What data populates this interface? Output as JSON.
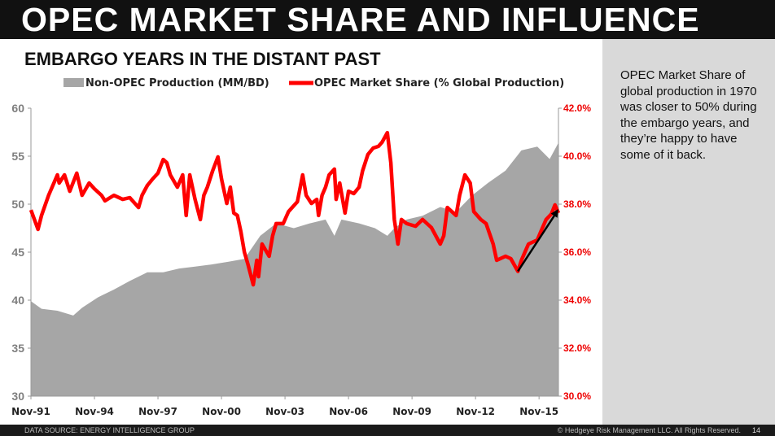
{
  "title": "OPEC MARKET SHARE AND INFLUENCE",
  "subtitle": "EMBARGO YEARS IN THE DISTANT PAST",
  "sidebar_text": "OPEC Market Share of global production in 1970 was closer to 50% during the embargo years, and they’re happy to have some of it back.",
  "footer": {
    "source": "DATA SOURCE: ENERGY INTELLIGENCE GROUP",
    "copyright": "© Hedgeye Risk Management LLC. All Rights Reserved.",
    "page": "14"
  },
  "chart_data": {
    "type": "area+line",
    "legend_position": "top",
    "grid": false,
    "x_ticks": [
      "Nov-91",
      "Nov-94",
      "Nov-97",
      "Nov-00",
      "Nov-03",
      "Nov-06",
      "Nov-09",
      "Nov-12",
      "Nov-15"
    ],
    "x_range": [
      "1991-11",
      "2016-10"
    ],
    "y_left": {
      "range": [
        30,
        60
      ],
      "ticks": [
        "30",
        "35",
        "40",
        "45",
        "50",
        "55",
        "60"
      ]
    },
    "y_right": {
      "range": [
        30,
        42
      ],
      "ticks": [
        "30.0%",
        "32.0%",
        "34.0%",
        "36.0%",
        "38.0%",
        "40.0%",
        "42.0%"
      ]
    },
    "colors": {
      "area": "#a6a6a6",
      "line": "#ff0000",
      "right_axis": "#ff0000",
      "arrow": "#000000"
    },
    "series": [
      {
        "name": "Non-OPEC Production (MM/BD)",
        "type": "area",
        "axis": "left",
        "points": [
          [
            "1991-11",
            39.9
          ],
          [
            "1992-05",
            39.1
          ],
          [
            "1993-02",
            38.9
          ],
          [
            "1993-11",
            38.4
          ],
          [
            "1994-04",
            39.2
          ],
          [
            "1995-01",
            40.3
          ],
          [
            "1995-10",
            41.1
          ],
          [
            "1996-07",
            42.0
          ],
          [
            "1997-05",
            42.9
          ],
          [
            "1998-02",
            42.9
          ],
          [
            "1998-11",
            43.3
          ],
          [
            "1999-08",
            43.5
          ],
          [
            "2000-05",
            43.7
          ],
          [
            "2001-03",
            44.0
          ],
          [
            "2001-12",
            44.3
          ],
          [
            "2002-09",
            46.7
          ],
          [
            "2003-06",
            48.0
          ],
          [
            "2004-04",
            47.5
          ],
          [
            "2005-01",
            48.0
          ],
          [
            "2005-10",
            48.4
          ],
          [
            "2006-03",
            46.7
          ],
          [
            "2006-07",
            48.4
          ],
          [
            "2007-05",
            48.0
          ],
          [
            "2008-02",
            47.5
          ],
          [
            "2008-09",
            46.7
          ],
          [
            "2009-01",
            47.5
          ],
          [
            "2009-08",
            48.4
          ],
          [
            "2010-05",
            48.8
          ],
          [
            "2011-03",
            49.7
          ],
          [
            "2011-12",
            49.2
          ],
          [
            "2012-09",
            50.9
          ],
          [
            "2013-06",
            52.2
          ],
          [
            "2014-04",
            53.5
          ],
          [
            "2015-01",
            55.6
          ],
          [
            "2015-10",
            56.0
          ],
          [
            "2016-05",
            54.7
          ],
          [
            "2016-10",
            56.4
          ]
        ]
      },
      {
        "name": "OPEC Market Share (% Global Production)",
        "type": "line",
        "axis": "right",
        "points": [
          [
            "1991-11",
            37.76
          ],
          [
            "1992-03",
            36.95
          ],
          [
            "1992-05",
            37.53
          ],
          [
            "1992-09",
            38.37
          ],
          [
            "1993-02",
            39.22
          ],
          [
            "1993-03",
            38.88
          ],
          [
            "1993-06",
            39.22
          ],
          [
            "1993-09",
            38.54
          ],
          [
            "1994-01",
            39.29
          ],
          [
            "1994-04",
            38.37
          ],
          [
            "1994-08",
            38.88
          ],
          [
            "1994-11",
            38.64
          ],
          [
            "1995-03",
            38.37
          ],
          [
            "1995-05",
            38.14
          ],
          [
            "1995-10",
            38.37
          ],
          [
            "1996-03",
            38.2
          ],
          [
            "1996-07",
            38.27
          ],
          [
            "1996-12",
            37.86
          ],
          [
            "1997-02",
            38.37
          ],
          [
            "1997-05",
            38.78
          ],
          [
            "1997-08",
            39.05
          ],
          [
            "1997-11",
            39.29
          ],
          [
            "1998-02",
            39.86
          ],
          [
            "1998-04",
            39.73
          ],
          [
            "1998-06",
            39.22
          ],
          [
            "1998-10",
            38.71
          ],
          [
            "1999-01",
            39.22
          ],
          [
            "1999-03",
            37.53
          ],
          [
            "1999-05",
            39.22
          ],
          [
            "1999-08",
            38.2
          ],
          [
            "1999-11",
            37.36
          ],
          [
            "2000-01",
            38.37
          ],
          [
            "2000-03",
            38.71
          ],
          [
            "2000-06",
            39.39
          ],
          [
            "2000-09",
            39.97
          ],
          [
            "2000-11",
            39.05
          ],
          [
            "2001-02",
            38.03
          ],
          [
            "2001-04",
            38.71
          ],
          [
            "2001-06",
            37.63
          ],
          [
            "2001-08",
            37.53
          ],
          [
            "2001-10",
            36.85
          ],
          [
            "2001-12",
            36.0
          ],
          [
            "2002-02",
            35.49
          ],
          [
            "2002-05",
            34.64
          ],
          [
            "2002-07",
            35.66
          ],
          [
            "2002-08",
            34.98
          ],
          [
            "2002-10",
            36.34
          ],
          [
            "2003-02",
            35.83
          ],
          [
            "2003-04",
            36.68
          ],
          [
            "2003-06",
            37.19
          ],
          [
            "2003-10",
            37.19
          ],
          [
            "2004-01",
            37.69
          ],
          [
            "2004-06",
            38.1
          ],
          [
            "2004-09",
            39.22
          ],
          [
            "2004-11",
            38.37
          ],
          [
            "2005-02",
            38.03
          ],
          [
            "2005-05",
            38.2
          ],
          [
            "2005-06",
            37.53
          ],
          [
            "2005-08",
            38.37
          ],
          [
            "2005-10",
            38.71
          ],
          [
            "2005-12",
            39.22
          ],
          [
            "2006-03",
            39.46
          ],
          [
            "2006-04",
            38.2
          ],
          [
            "2006-06",
            38.88
          ],
          [
            "2006-09",
            37.63
          ],
          [
            "2006-11",
            38.54
          ],
          [
            "2007-02",
            38.44
          ],
          [
            "2007-05",
            38.71
          ],
          [
            "2007-07",
            39.39
          ],
          [
            "2007-10",
            40.07
          ],
          [
            "2008-01",
            40.34
          ],
          [
            "2008-04",
            40.41
          ],
          [
            "2008-06",
            40.58
          ],
          [
            "2008-09",
            40.98
          ],
          [
            "2008-11",
            39.73
          ],
          [
            "2009-01",
            37.36
          ],
          [
            "2009-03",
            36.34
          ],
          [
            "2009-05",
            37.36
          ],
          [
            "2009-08",
            37.19
          ],
          [
            "2010-01",
            37.08
          ],
          [
            "2010-05",
            37.36
          ],
          [
            "2010-10",
            37.02
          ],
          [
            "2011-03",
            36.34
          ],
          [
            "2011-05",
            36.68
          ],
          [
            "2011-07",
            37.86
          ],
          [
            "2011-12",
            37.53
          ],
          [
            "2012-02",
            38.37
          ],
          [
            "2012-05",
            39.22
          ],
          [
            "2012-08",
            38.88
          ],
          [
            "2012-10",
            37.69
          ],
          [
            "2013-02",
            37.36
          ],
          [
            "2013-05",
            37.19
          ],
          [
            "2013-09",
            36.34
          ],
          [
            "2013-11",
            35.66
          ],
          [
            "2014-04",
            35.83
          ],
          [
            "2014-07",
            35.73
          ],
          [
            "2014-11",
            35.2
          ],
          [
            "2015-01",
            35.66
          ],
          [
            "2015-03",
            36.0
          ],
          [
            "2015-05",
            36.34
          ],
          [
            "2015-10",
            36.51
          ],
          [
            "2015-12",
            36.85
          ],
          [
            "2016-03",
            37.36
          ],
          [
            "2016-06",
            37.59
          ],
          [
            "2016-08",
            37.97
          ],
          [
            "2016-10",
            37.63
          ]
        ]
      }
    ],
    "annotations": [
      {
        "type": "arrow",
        "from": [
          "2014-11",
          35.2
        ],
        "to": [
          "2016-10",
          37.8
        ],
        "axis": "right"
      }
    ]
  }
}
